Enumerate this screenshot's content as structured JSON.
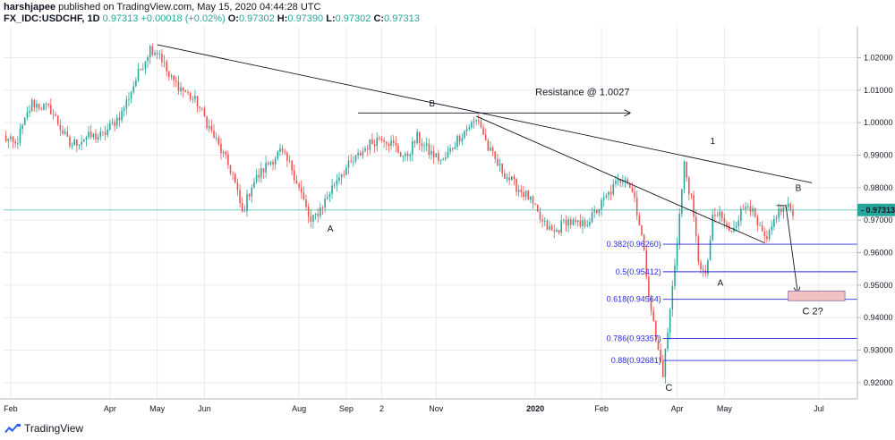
{
  "header": {
    "publisher": "harshjapee",
    "published_text": "published on TradingView.com, May 15, 2020 04:44:28 UTC",
    "symbol": "FX_IDC:USDCHF, 1D",
    "last": "0.97313",
    "change": "+0.00018 (+0.02%)",
    "o_label": "O:",
    "o": "0.97302",
    "h_label": "H:",
    "h": "0.97390",
    "l_label": "L:",
    "l": "0.97302",
    "c_label": "C:",
    "c": "0.97313"
  },
  "footer": {
    "brand": "TradingView"
  },
  "colors": {
    "up": "#26a69a",
    "down": "#ef5350",
    "fib": "#2a2ae0",
    "price_line": "#26a69a",
    "grid": "#e8eaef",
    "trend": "#131722"
  },
  "chart_data": {
    "type": "candlestick",
    "symbol": "FX_IDC:USDCHF",
    "interval": "1D",
    "price_tag": "0.97313",
    "ylim": [
      0.915,
      1.0295
    ],
    "y_ticks": [
      "1.02000",
      "1.01000",
      "1.00000",
      "0.99000",
      "0.98000",
      "0.97000",
      "0.96000",
      "0.95000",
      "0.94000",
      "0.93000",
      "0.92000"
    ],
    "x_ticks": [
      "Feb",
      "Apr",
      "May",
      "Jun",
      "Aug",
      "Sep",
      "2",
      "Nov",
      "2020",
      "Feb",
      "Apr",
      "May",
      "Jul"
    ],
    "bold_x_ticks": [
      "2020"
    ],
    "x_tick_index": [
      3,
      45,
      65,
      85,
      125,
      145,
      160,
      183,
      225,
      253,
      285,
      305,
      345
    ],
    "n_days": 360,
    "path_anchors": [
      [
        0,
        0.9955
      ],
      [
        5,
        0.993
      ],
      [
        12,
        1.006
      ],
      [
        20,
        1.004
      ],
      [
        28,
        0.993
      ],
      [
        35,
        0.9955
      ],
      [
        42,
        0.996
      ],
      [
        50,
        1.003
      ],
      [
        57,
        1.015
      ],
      [
        62,
        1.023
      ],
      [
        66,
        1.0215
      ],
      [
        70,
        1.014
      ],
      [
        76,
        1.01
      ],
      [
        82,
        1.006
      ],
      [
        87,
        0.9985
      ],
      [
        93,
        0.99
      ],
      [
        97,
        0.984
      ],
      [
        101,
        0.972
      ],
      [
        105,
        0.981
      ],
      [
        112,
        0.9875
      ],
      [
        117,
        0.991
      ],
      [
        122,
        0.986
      ],
      [
        126,
        0.978
      ],
      [
        130,
        0.969
      ],
      [
        136,
        0.976
      ],
      [
        142,
        0.984
      ],
      [
        148,
        0.988
      ],
      [
        154,
        0.993
      ],
      [
        160,
        0.996
      ],
      [
        165,
        0.993
      ],
      [
        170,
        0.989
      ],
      [
        175,
        0.9955
      ],
      [
        180,
        0.991
      ],
      [
        186,
        0.988
      ],
      [
        192,
        0.995
      ],
      [
        197,
        0.999
      ],
      [
        201,
        1.001
      ],
      [
        205,
        0.992
      ],
      [
        210,
        0.986
      ],
      [
        216,
        0.981
      ],
      [
        222,
        0.977
      ],
      [
        228,
        0.969
      ],
      [
        233,
        0.966
      ],
      [
        238,
        0.97
      ],
      [
        244,
        0.968
      ],
      [
        249,
        0.971
      ],
      [
        254,
        0.976
      ],
      [
        259,
        0.981
      ],
      [
        263,
        0.984
      ],
      [
        267,
        0.977
      ],
      [
        270,
        0.965
      ],
      [
        273,
        0.948
      ],
      [
        276,
        0.933
      ],
      [
        279,
        0.923
      ],
      [
        282,
        0.942
      ],
      [
        285,
        0.964
      ],
      [
        288,
        0.987
      ],
      [
        291,
        0.976
      ],
      [
        294,
        0.958
      ],
      [
        297,
        0.952
      ],
      [
        300,
        0.97
      ],
      [
        303,
        0.972
      ],
      [
        307,
        0.966
      ],
      [
        311,
        0.971
      ],
      [
        315,
        0.976
      ],
      [
        319,
        0.968
      ],
      [
        323,
        0.963
      ],
      [
        327,
        0.972
      ],
      [
        331,
        0.974
      ],
      [
        334,
        0.973
      ]
    ],
    "levels": [
      {
        "label": "0.382(0.96260)",
        "value": 0.9626
      },
      {
        "label": "0.5(0.95412)",
        "value": 0.95412
      },
      {
        "label": "0.618(0.94564)",
        "value": 0.94564
      },
      {
        "label": "0.786(0.93357)",
        "value": 0.93357
      },
      {
        "label": "0.88(0.92681)",
        "value": 0.92681
      }
    ],
    "annotations": [
      "B",
      "A",
      "Resistance @ 1.0027",
      "1",
      "B",
      "A",
      "C",
      "C 2?"
    ],
    "trendlines": [
      {
        "from": [
          65,
          1.024
        ],
        "to": [
          342,
          0.9815
        ]
      },
      {
        "from": [
          200,
          1.002
        ],
        "to": [
          322,
          0.963
        ]
      },
      {
        "from": [
          150,
          1.003
        ],
        "to": [
          265,
          1.003
        ],
        "arrow": true
      }
    ]
  }
}
